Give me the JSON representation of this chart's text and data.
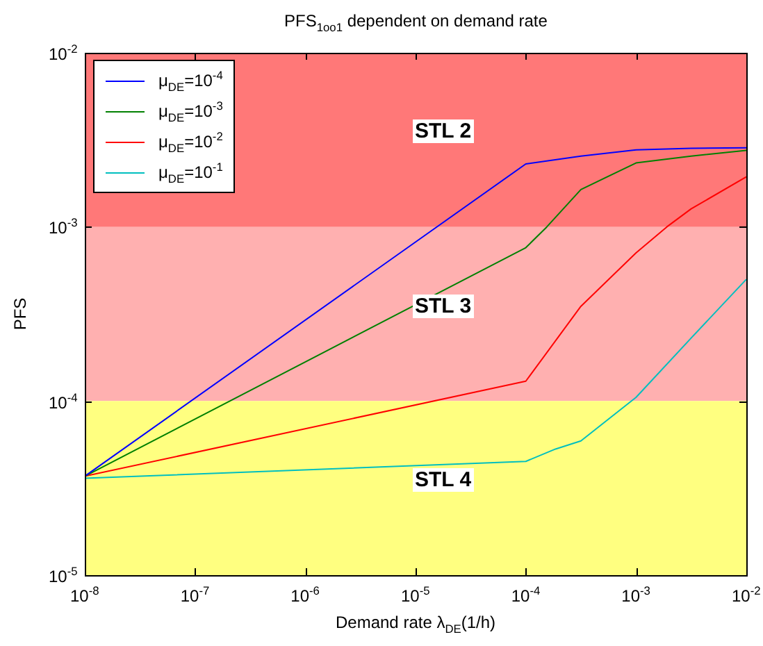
{
  "chart_data": {
    "type": "line",
    "title": "PFS$_{1oo1}$ dependent on demand rate",
    "xlabel": "Demand rate λ$_{DE}$(1/h)",
    "ylabel": "PFS",
    "log": "xy",
    "legend": "top left",
    "marker": "none",
    "line_style": "solid",
    "xlim": [
      1e-08,
      0.01
    ],
    "ylim": [
      1e-05,
      0.01
    ],
    "xticks": [
      {
        "value": 1e-08,
        "label": "10$^{-8}$"
      },
      {
        "value": 1e-07,
        "label": "10$^{-7}$"
      },
      {
        "value": 1e-06,
        "label": "10$^{-6}$"
      },
      {
        "value": 1e-05,
        "label": "10$^{-5}$"
      },
      {
        "value": 0.0001,
        "label": "10$^{-4}$"
      },
      {
        "value": 0.001,
        "label": "10$^{-3}$"
      },
      {
        "value": 0.01,
        "label": "10$^{-2}$"
      }
    ],
    "yticks": [
      {
        "value": 1e-05,
        "label": "10$^{-5}$"
      },
      {
        "value": 0.0001,
        "label": "10$^{-4}$"
      },
      {
        "value": 0.001,
        "label": "10$^{-3}$"
      },
      {
        "value": 0.01,
        "label": "10$^{-2}$"
      }
    ],
    "bands": [
      {
        "axis": "y",
        "from": 0.001,
        "to": 0.01,
        "label": "STL 2",
        "color": "#ff7878"
      },
      {
        "axis": "y",
        "from": 0.0001,
        "to": 0.001,
        "label": "STL 3",
        "color": "#ffb0b0"
      },
      {
        "axis": "y",
        "from": 1e-05,
        "to": 0.0001,
        "label": "STL 4",
        "color": "#ffff80"
      }
    ],
    "series": [
      {
        "name": "μ$_{DE}$=10$^{-4}$",
        "color": "#0000ff",
        "x": [
          1e-08,
          0.0001,
          0.000316,
          0.001,
          0.00316,
          0.01
        ],
        "values": [
          3.7e-05,
          0.0023,
          0.00255,
          0.00277,
          0.00283,
          0.00285
        ]
      },
      {
        "name": "μ$_{DE}$=10$^{-3}$",
        "color": "#008000",
        "x": [
          1e-08,
          0.0001,
          0.000155,
          0.000316,
          0.001,
          0.00316,
          0.01
        ],
        "values": [
          3.7e-05,
          0.00076,
          0.001,
          0.00164,
          0.00233,
          0.00255,
          0.00275
        ]
      },
      {
        "name": "μ$_{DE}$=10$^{-2}$",
        "color": "#ff0000",
        "x": [
          1e-08,
          0.0001,
          0.000316,
          0.001,
          0.0019,
          0.00316,
          0.01
        ],
        "values": [
          3.7e-05,
          0.00013,
          0.00035,
          0.00071,
          0.001,
          0.00127,
          0.00194
        ]
      },
      {
        "name": "μ$_{DE}$=10$^{-1}$",
        "color": "#00bfbf",
        "x": [
          1e-08,
          0.0001,
          0.000186,
          0.000316,
          0.001,
          0.00316,
          0.01
        ],
        "values": [
          3.6e-05,
          4.5e-05,
          5.3e-05,
          5.9e-05,
          0.000105,
          0.00023,
          0.0005
        ]
      }
    ]
  }
}
